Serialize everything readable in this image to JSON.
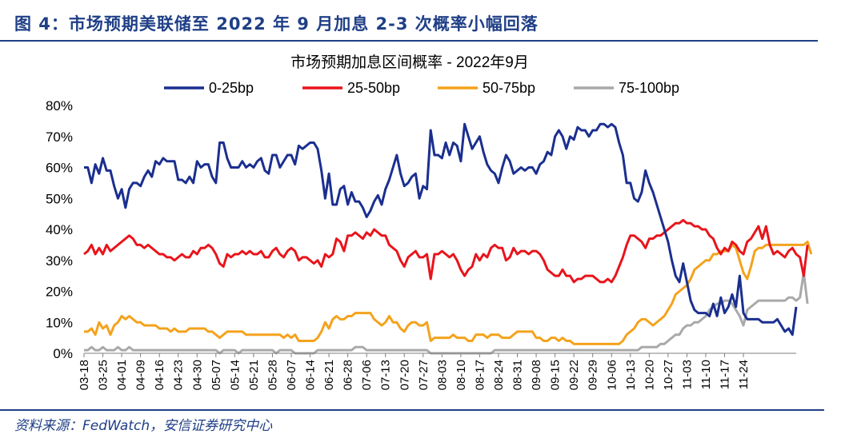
{
  "header": {
    "figure_title": "图 4：市场预期美联储至 2022 年 9 月加息 2-3 次概率小幅回落",
    "source": "资料来源：FedWatch，安信证券研究中心"
  },
  "colors": {
    "header_blue": "#1f3f86",
    "series": [
      "#1a2f8f",
      "#e8141b",
      "#f4a21c",
      "#a9a9a9"
    ]
  },
  "chart_data": {
    "type": "line",
    "title": "市场预期加息区间概率 - 2022年9月",
    "legend_position": "top",
    "ylim": [
      0,
      80
    ],
    "yticks": [
      "0%",
      "10%",
      "20%",
      "30%",
      "40%",
      "50%",
      "60%",
      "70%",
      "80%"
    ],
    "x_tick_labels": [
      "03-18",
      "03-25",
      "04-01",
      "04-09",
      "04-16",
      "04-23",
      "04-30",
      "05-07",
      "05-14",
      "05-21",
      "05-28",
      "06-07",
      "06-14",
      "06-21",
      "06-28",
      "07-06",
      "07-13",
      "07-20",
      "07-27",
      "08-03",
      "08-10",
      "08-17",
      "08-24",
      "08-31",
      "09-08",
      "09-15",
      "09-22",
      "09-29",
      "10-06",
      "10-13",
      "10-20",
      "10-27",
      "11-03",
      "11-10",
      "11-17",
      "11-24"
    ],
    "x_period_points": 5,
    "series": [
      {
        "name": "0-25bp",
        "values": [
          60,
          60,
          55,
          61,
          58,
          63,
          59,
          59,
          54,
          50,
          53,
          47,
          53,
          55,
          55,
          54,
          57,
          59,
          57,
          62,
          61,
          63,
          62,
          62,
          62,
          56,
          56,
          55,
          57,
          55,
          62,
          60,
          61,
          61,
          57,
          55,
          68,
          68,
          63,
          60,
          60,
          60,
          62,
          60,
          61,
          60,
          62,
          63,
          59,
          58,
          64,
          64,
          60,
          62,
          64,
          64,
          61,
          67,
          66,
          67,
          68,
          68,
          66,
          59,
          50,
          58,
          48,
          48,
          53,
          54,
          48,
          52,
          49,
          49,
          47,
          44,
          46,
          49,
          51,
          48,
          53,
          56,
          60,
          64,
          58,
          54,
          55,
          57,
          58,
          50,
          54,
          53,
          72,
          64,
          64,
          63,
          68,
          64,
          68,
          67,
          62,
          74,
          70,
          66,
          68,
          70,
          65,
          61,
          59,
          58,
          55,
          60,
          64,
          62,
          58,
          59,
          60,
          59,
          60,
          60,
          58,
          61,
          62,
          65,
          64,
          70,
          72,
          70,
          66,
          70,
          69,
          73,
          72,
          72,
          70,
          72,
          72,
          74,
          74,
          73,
          74,
          73,
          68,
          64,
          55,
          55,
          50,
          49,
          52,
          59,
          55,
          52,
          48,
          44,
          40,
          36,
          30,
          25,
          23,
          29,
          23,
          17,
          14,
          13,
          13,
          13,
          12,
          16,
          12,
          18,
          13,
          15,
          19,
          15,
          25,
          13,
          11,
          11,
          11,
          11,
          10,
          10,
          10,
          10,
          11,
          9,
          7,
          8,
          6,
          15
        ]
      },
      {
        "name": "25-50bp",
        "values": [
          32,
          33,
          35,
          32,
          34,
          32,
          35,
          33,
          34,
          35,
          36,
          37,
          38,
          37,
          35,
          35,
          34,
          35,
          34,
          33,
          32,
          32,
          31,
          31,
          30,
          31,
          32,
          31,
          31,
          33,
          32,
          34,
          34,
          35,
          34,
          32,
          29,
          28,
          32,
          31,
          32,
          32,
          33,
          32,
          33,
          32,
          32,
          33,
          31,
          31,
          33,
          34,
          32,
          31,
          33,
          34,
          33,
          30,
          31,
          31,
          30,
          29,
          30,
          28,
          32,
          31,
          32,
          37,
          36,
          33,
          38,
          38,
          39,
          38,
          37,
          39,
          38,
          40,
          39,
          38,
          38,
          35,
          34,
          33,
          30,
          28,
          31,
          32,
          33,
          31,
          31,
          32,
          24,
          32,
          32,
          33,
          32,
          31,
          32,
          30,
          27,
          25,
          27,
          28,
          32,
          30,
          32,
          31,
          34,
          35,
          34,
          34,
          30,
          31,
          34,
          32,
          33,
          33,
          32,
          33,
          33,
          32,
          30,
          27,
          26,
          25,
          25,
          27,
          25,
          25,
          23,
          24,
          24,
          25,
          25,
          25,
          24,
          23,
          23,
          24,
          23,
          25,
          28,
          31,
          35,
          38,
          38,
          37,
          36,
          34,
          37,
          37,
          38,
          38,
          39,
          40,
          41,
          42,
          42,
          43,
          42,
          42,
          41,
          41,
          40,
          40,
          38,
          37,
          34,
          32,
          34,
          33,
          36,
          35,
          33,
          32,
          36,
          37,
          39,
          41,
          37,
          41,
          35,
          32,
          33,
          32,
          31,
          33,
          34,
          32,
          31,
          25,
          35
        ]
      },
      {
        "name": "50-75bp",
        "values": [
          7,
          7,
          8,
          6,
          10,
          8,
          9,
          6,
          9,
          10,
          12,
          11,
          12,
          11,
          10,
          10,
          9,
          9,
          9,
          9,
          8,
          8,
          8,
          7,
          8,
          7,
          7,
          7,
          8,
          8,
          8,
          8,
          8,
          7,
          7,
          6,
          5,
          6,
          7,
          7,
          7,
          7,
          7,
          6,
          6,
          6,
          6,
          6,
          6,
          6,
          6,
          6,
          6,
          5,
          6,
          5,
          6,
          4,
          4,
          4,
          4,
          4,
          5,
          7,
          10,
          8,
          11,
          12,
          11,
          11,
          12,
          12,
          13,
          13,
          13,
          13,
          13,
          11,
          10,
          9,
          10,
          12,
          10,
          10,
          8,
          7,
          9,
          10,
          10,
          9,
          9,
          10,
          4,
          5,
          5,
          5,
          5,
          5,
          6,
          5,
          5,
          5,
          4,
          4,
          6,
          6,
          6,
          5,
          6,
          6,
          6,
          5,
          5,
          5,
          6,
          7,
          7,
          7,
          7,
          7,
          5,
          5,
          4,
          4,
          5,
          5,
          4,
          5,
          4,
          4,
          3,
          3,
          3,
          3,
          3,
          3,
          3,
          3,
          3,
          3,
          3,
          3,
          3,
          4,
          6,
          7,
          8,
          10,
          11,
          11,
          10,
          9,
          10,
          11,
          12,
          14,
          16,
          19,
          20,
          21,
          22,
          24,
          27,
          28,
          29,
          30,
          30,
          32,
          32,
          33,
          33,
          33,
          35,
          34,
          30,
          26,
          24,
          28,
          33,
          34,
          34,
          35,
          35,
          35,
          35,
          35,
          35,
          35,
          35,
          35,
          35,
          35,
          36,
          32
        ]
      },
      {
        "name": "75-100bp",
        "values": [
          1,
          1,
          2,
          1,
          1,
          2,
          1,
          1,
          1,
          2,
          1,
          1,
          2,
          1,
          1,
          1,
          1,
          1,
          1,
          1,
          1,
          1,
          1,
          1,
          1,
          1,
          1,
          1,
          1,
          1,
          1,
          1,
          1,
          1,
          1,
          1,
          0,
          1,
          1,
          1,
          1,
          0,
          1,
          1,
          1,
          1,
          1,
          1,
          1,
          1,
          1,
          0,
          1,
          1,
          1,
          1,
          0,
          0,
          0,
          0,
          0,
          0,
          1,
          1,
          1,
          1,
          1,
          1,
          1,
          1,
          1,
          1,
          2,
          2,
          2,
          1,
          1,
          1,
          1,
          1,
          1,
          1,
          1,
          1,
          1,
          1,
          1,
          1,
          1,
          1,
          1,
          1,
          0,
          0,
          0,
          0,
          0,
          0,
          0,
          0,
          0,
          0,
          0,
          0,
          0,
          0,
          0,
          0,
          0,
          1,
          1,
          1,
          1,
          1,
          1,
          1,
          1,
          1,
          1,
          1,
          1,
          1,
          1,
          1,
          1,
          1,
          1,
          1,
          1,
          1,
          1,
          1,
          1,
          1,
          1,
          1,
          1,
          1,
          1,
          1,
          1,
          1,
          1,
          1,
          1,
          1,
          1,
          1,
          2,
          2,
          2,
          2,
          2,
          3,
          3,
          4,
          5,
          6,
          6,
          8,
          9,
          9,
          10,
          10,
          11,
          12,
          14,
          15,
          16,
          16,
          17,
          17,
          16,
          14,
          12,
          9,
          14,
          15,
          16,
          17,
          17,
          17,
          17,
          17,
          17,
          17,
          17,
          18,
          18,
          17,
          18,
          26,
          16
        ]
      }
    ]
  }
}
